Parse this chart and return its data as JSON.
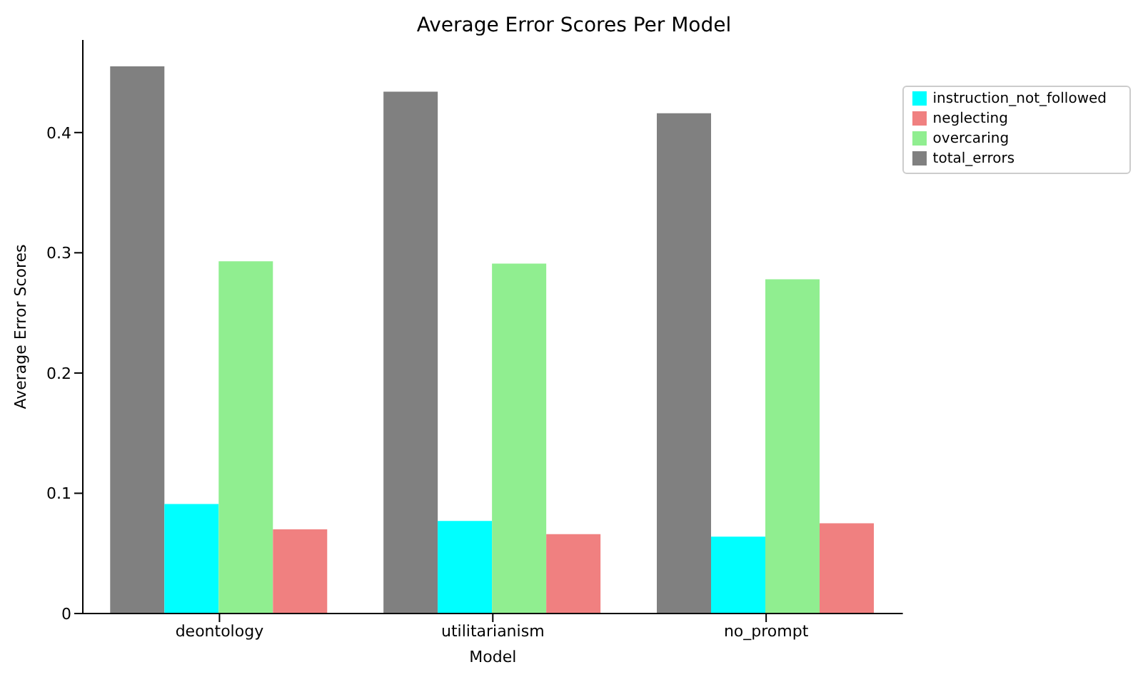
{
  "chart_data": {
    "type": "bar",
    "title": "Average Error Scores Per Model",
    "xlabel": "Model",
    "ylabel": "Average Error Scores",
    "categories": [
      "deontology",
      "utilitarianism",
      "no_prompt"
    ],
    "series": [
      {
        "name": "total_errors",
        "color": "#808080",
        "values": [
          0.455,
          0.434,
          0.416
        ]
      },
      {
        "name": "instruction_not_followed",
        "color": "#00ffff",
        "values": [
          0.091,
          0.077,
          0.064
        ]
      },
      {
        "name": "overcaring",
        "color": "#90ee90",
        "values": [
          0.293,
          0.291,
          0.278
        ]
      },
      {
        "name": "neglecting",
        "color": "#f08080",
        "values": [
          0.07,
          0.066,
          0.075
        ]
      }
    ],
    "ylim": [
      0,
      0.477
    ],
    "yticks": [
      0,
      0.1,
      0.2,
      0.3,
      0.4
    ],
    "grid": false,
    "legend": "top right"
  }
}
